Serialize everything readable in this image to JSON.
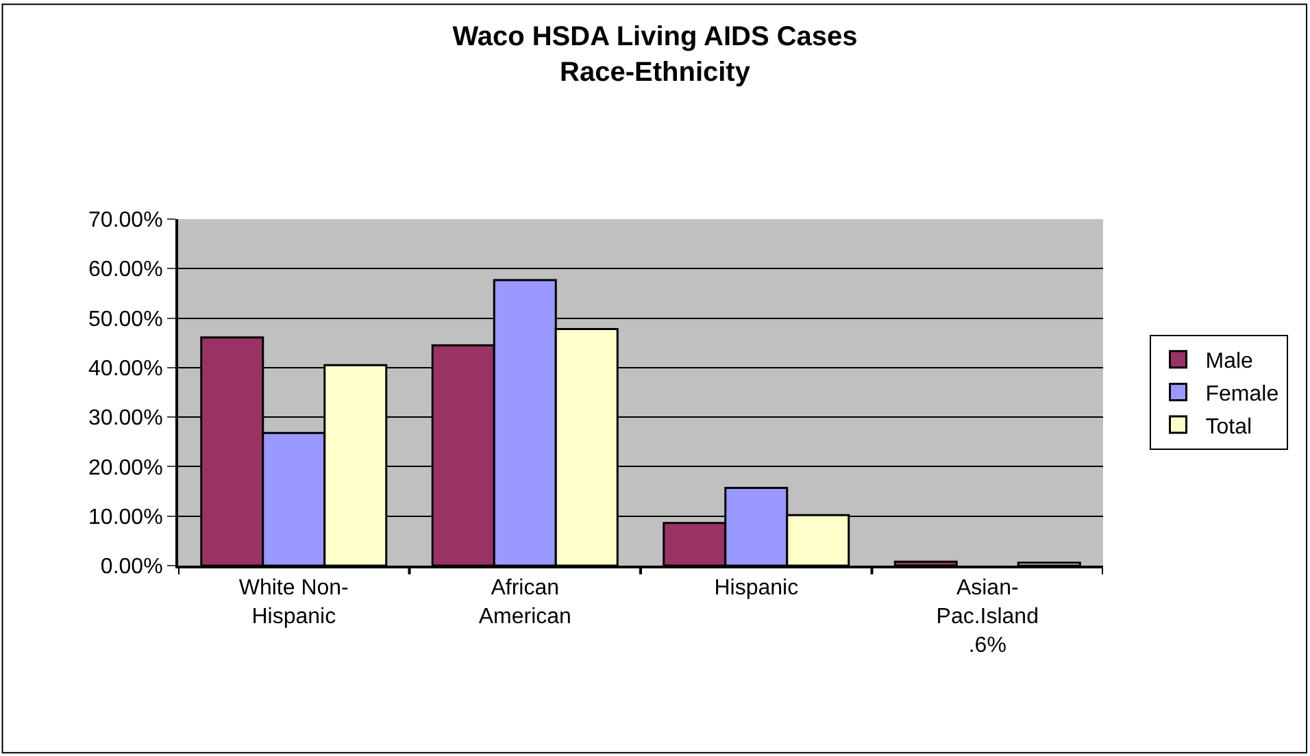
{
  "chart_data": {
    "type": "bar",
    "title": "Waco HSDA Living AIDS Cases\nRace-Ethnicity",
    "categories": [
      "White Non-\nHispanic",
      "African\nAmerican",
      "Hispanic",
      "Asian-\nPac.Island\n.6%"
    ],
    "series": [
      {
        "name": "Male",
        "color": "#993366",
        "values": [
          46.1,
          44.5,
          8.6,
          0.8
        ]
      },
      {
        "name": "Female",
        "color": "#9999ff",
        "values": [
          26.8,
          57.7,
          15.7,
          null
        ]
      },
      {
        "name": "Total",
        "color": "#ffffcc",
        "values": [
          40.5,
          47.8,
          10.2,
          0.6
        ]
      }
    ],
    "ylim": [
      0,
      70
    ],
    "yticks": [
      {
        "value": 0,
        "label": "0.00%"
      },
      {
        "value": 10,
        "label": "10.00%"
      },
      {
        "value": 20,
        "label": "20.00%"
      },
      {
        "value": 30,
        "label": "30.00%"
      },
      {
        "value": 40,
        "label": "40.00%"
      },
      {
        "value": 50,
        "label": "50.00%"
      },
      {
        "value": 60,
        "label": "60.00%"
      },
      {
        "value": 70,
        "label": "70.00%"
      }
    ],
    "grid": "y",
    "legend": "right"
  }
}
